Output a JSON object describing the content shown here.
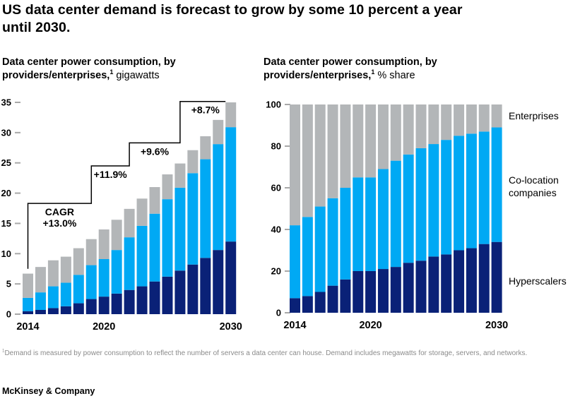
{
  "page": {
    "title": "US data center demand is forecast to grow by some 10 percent a year until 2030.",
    "footnote_sup": "1",
    "footnote": "Demand is measured by power consumption to reflect the number of servers a data center can house. Demand includes megawatts for storage, servers, and networks.",
    "footer": "McKinsey & Company"
  },
  "left_chart": {
    "subtitle_bold": "Data center power consumption, by providers/enterprises,",
    "subtitle_sup": "1",
    "subtitle_unit": " gigawatts"
  },
  "right_chart": {
    "subtitle_bold": "Data center power consumption, by providers/enterprises,",
    "subtitle_sup": "1",
    "subtitle_unit": " % share"
  },
  "legend": {
    "enterprises": "Enterprises",
    "colocation": "Co-location companies",
    "hyperscalers": "Hyperscalers"
  },
  "colors": {
    "hyperscalers": "#0a2177",
    "colocation": "#00a9f4",
    "enterprises": "#b3b6b8",
    "tick": "#a8a8a8",
    "bracket": "#000000"
  },
  "chart_data": [
    {
      "type": "bar",
      "stacked": true,
      "title": "Data center power consumption, by providers/enterprises, gigawatts",
      "ylabel": "gigawatts",
      "xlabel": "",
      "grid": false,
      "ylim": [
        0,
        35
      ],
      "yticks": [
        0,
        5,
        10,
        15,
        20,
        25,
        30,
        35
      ],
      "categories": [
        2014,
        2015,
        2016,
        2017,
        2018,
        2019,
        2020,
        2021,
        2022,
        2023,
        2024,
        2025,
        2026,
        2027,
        2028,
        2029,
        2030
      ],
      "x_ticks": [
        {
          "index": 0,
          "label": "2014"
        },
        {
          "index": 6,
          "label": "2020"
        },
        {
          "index": 16,
          "label": "2030"
        }
      ],
      "series": [
        {
          "name": "Hyperscalers",
          "color": "#0a2177",
          "values": [
            0.5,
            0.7,
            1.0,
            1.3,
            1.8,
            2.5,
            2.9,
            3.4,
            4.0,
            4.6,
            5.4,
            6.2,
            7.2,
            8.2,
            9.3,
            10.6,
            12.0
          ]
        },
        {
          "name": "Co-location companies",
          "color": "#00a9f4",
          "values": [
            2.2,
            2.9,
            3.6,
            3.9,
            4.7,
            5.6,
            6.2,
            7.2,
            8.7,
            10.0,
            11.2,
            12.8,
            13.7,
            15.1,
            16.3,
            17.5,
            18.9
          ]
        },
        {
          "name": "Enterprises",
          "color": "#b3b6b8",
          "values": [
            4.0,
            4.2,
            4.3,
            4.3,
            4.4,
            4.3,
            4.9,
            5.0,
            4.7,
            4.5,
            4.4,
            4.1,
            4.0,
            3.8,
            3.8,
            4.0,
            4.1
          ]
        }
      ],
      "cagr_brackets": [
        {
          "lines": [
            "CAGR",
            "+13.0%"
          ],
          "from": 0,
          "to": 5,
          "level": 18.3,
          "start_drop": 7.5
        },
        {
          "lines": [
            "+11.9%"
          ],
          "from": 5,
          "to": 8,
          "level": 24.5
        },
        {
          "lines": [
            "+9.6%"
          ],
          "from": 8,
          "to": 12,
          "level": 28.3
        },
        {
          "lines": [
            "+8.7%"
          ],
          "from": 12,
          "to": 16,
          "level": 35.15
        }
      ]
    },
    {
      "type": "bar",
      "stacked": true,
      "title": "Data center power consumption, by providers/enterprises, % share",
      "ylabel": "% share",
      "xlabel": "",
      "grid": false,
      "ylim": [
        0,
        100
      ],
      "yticks": [
        0,
        20,
        40,
        60,
        80,
        100
      ],
      "legend_position": "right",
      "categories": [
        2014,
        2015,
        2016,
        2017,
        2018,
        2019,
        2020,
        2021,
        2022,
        2023,
        2024,
        2025,
        2026,
        2027,
        2028,
        2029,
        2030
      ],
      "x_ticks": [
        {
          "index": 0,
          "label": "2014"
        },
        {
          "index": 6,
          "label": "2020"
        },
        {
          "index": 16,
          "label": "2030"
        }
      ],
      "series": [
        {
          "name": "Hyperscalers",
          "color": "#0a2177",
          "values": [
            7,
            8,
            10,
            13,
            16,
            20,
            20,
            21,
            22,
            24,
            25,
            27,
            28,
            30,
            31,
            33,
            34
          ]
        },
        {
          "name": "Co-location companies",
          "color": "#00a9f4",
          "values": [
            35,
            38,
            41,
            42,
            44,
            45,
            45,
            48,
            51,
            52,
            54,
            54,
            55,
            55,
            55,
            54,
            55
          ]
        },
        {
          "name": "Enterprises",
          "color": "#b3b6b8",
          "values": [
            58,
            54,
            49,
            45,
            40,
            35,
            35,
            31,
            27,
            24,
            21,
            19,
            17,
            15,
            14,
            13,
            11
          ]
        }
      ]
    }
  ]
}
